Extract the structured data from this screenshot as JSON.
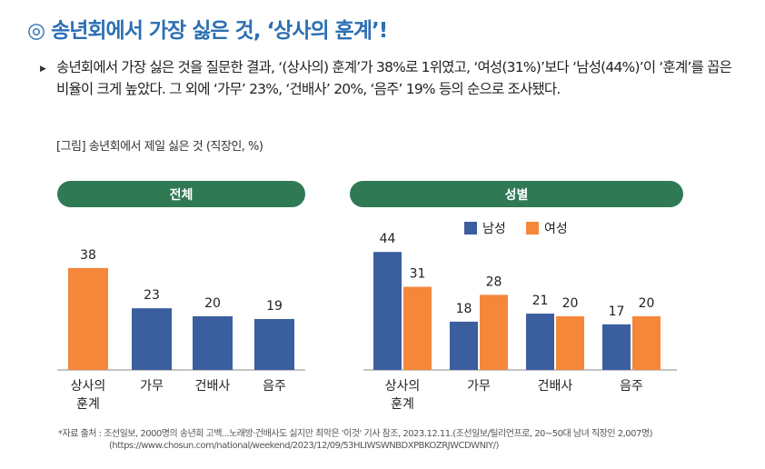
{
  "title": "◎ 송년회에서 가장 싫은 것, ‘상사의 훈계’!",
  "paragraph": "송년회에서 가장 싫은 것을 질문한 결과, ‘(상사의) 훈계’가 38%로 1위였고, ‘여성(31%)’보다 ‘남성(44%)’이 ‘훈계’를 꼽은 비율이 크게 높았다. 그 외에 ‘가무’ 23%, ‘건배사’ 20%, ‘음주’ 19% 등의 순으로 조사됐다.",
  "figure_caption": "[그림] 송년회에서 제일 싫은 것 (직장인, %)",
  "source_line1": "*자료 출처 : 조선일보, 2000명의 송년회 고백...노래방·건배사도 싫지만 최악은 '이것' 기사 참조, 2023.12.11.(조선일보/틸리언프로, 20~50대 남녀 직장인 2,007명)",
  "source_line2": "(https://www.chosun.com/national/weekend/2023/12/09/53HLIWSWNBDXPBKOZRJWCDWNIY/)",
  "colors": {
    "title": "#2c6fb3",
    "header": "#2f7a55",
    "male": "#3b5e9e",
    "female": "#f5873a",
    "total": "#f5873a"
  },
  "chart_data": [
    {
      "type": "bar",
      "title": "전체",
      "categories": [
        "상사의\n훈계",
        "가무",
        "건배사",
        "음주"
      ],
      "series": [
        {
          "values": [
            38,
            23,
            20,
            19
          ],
          "colors": [
            "#f5873a",
            "#3b5e9e",
            "#3b5e9e",
            "#3b5e9e"
          ]
        }
      ]
    },
    {
      "type": "bar",
      "title": "성별",
      "categories": [
        "상사의\n훈계",
        "가무",
        "건배사",
        "음주"
      ],
      "legend": "top-center",
      "series": [
        {
          "name": "남성",
          "values": [
            44,
            18,
            21,
            17
          ],
          "color": "#3b5e9e"
        },
        {
          "name": "여성",
          "values": [
            31,
            28,
            20,
            20
          ],
          "color": "#f5873a"
        }
      ]
    }
  ]
}
